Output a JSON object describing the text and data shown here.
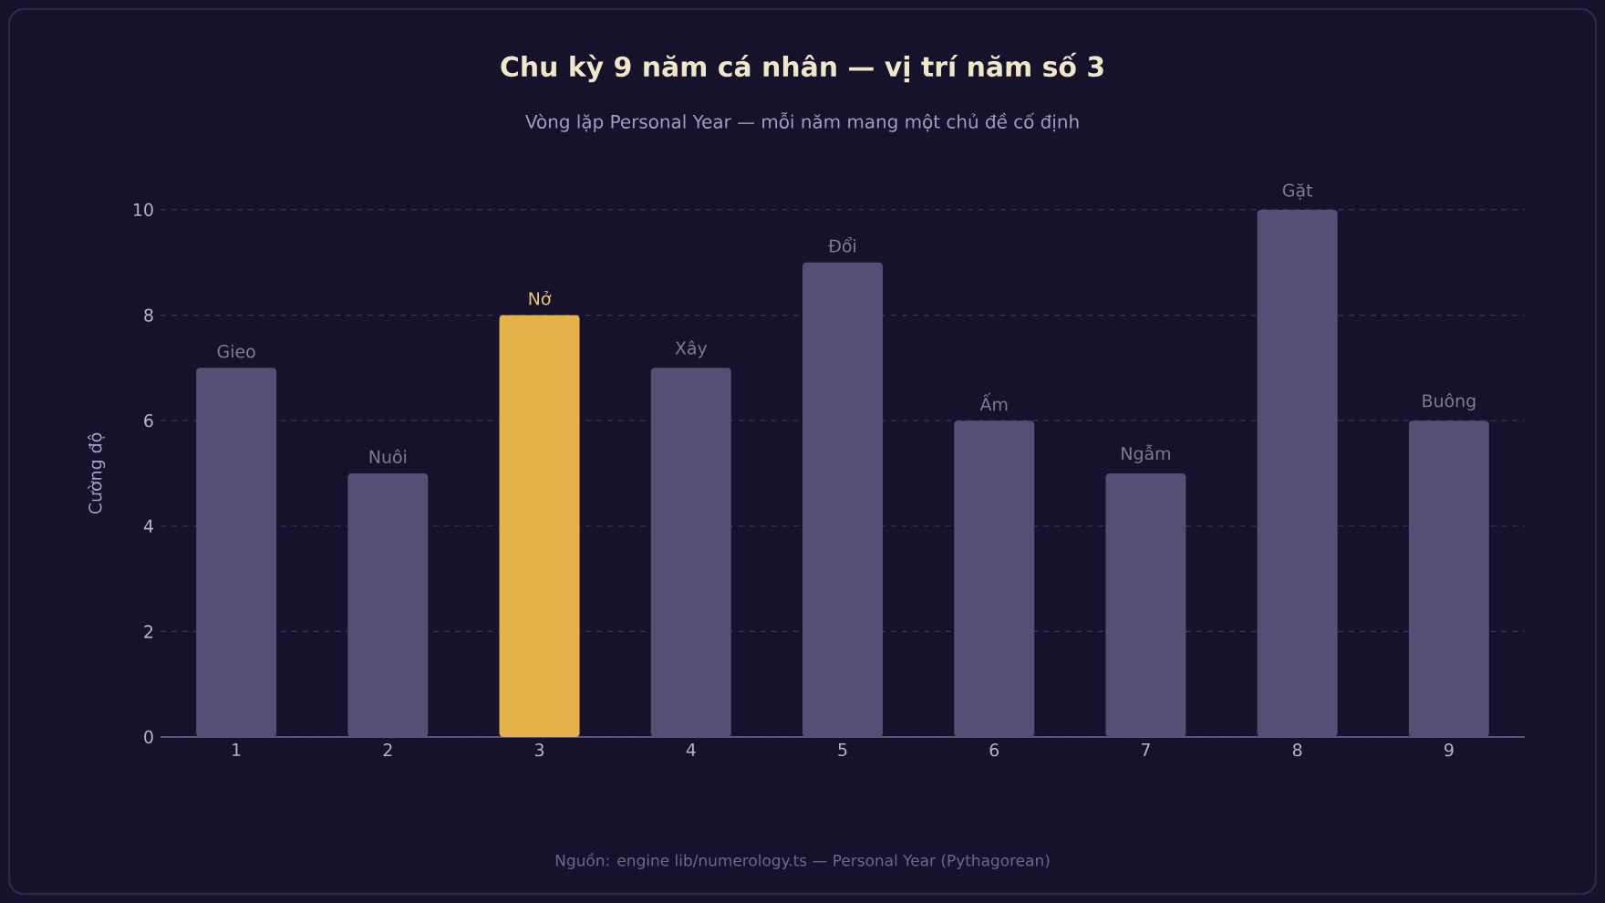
{
  "chart_data": {
    "type": "bar",
    "title": "Chu kỳ 9 năm cá nhân — vị trí năm số 3",
    "subtitle": "Vòng lặp Personal Year — mỗi năm mang một chủ đề cố định",
    "ylabel": "Cường độ",
    "categories": [
      "1",
      "2",
      "3",
      "4",
      "5",
      "6",
      "7",
      "8",
      "9"
    ],
    "values": [
      7,
      5,
      8,
      7,
      9,
      6,
      5,
      10,
      6
    ],
    "colors": [
      "#564e75",
      "#564e75",
      "#e5b24a",
      "#564e75",
      "#564e75",
      "#564e75",
      "#564e75",
      "#564e75",
      "#564e75"
    ],
    "value_labels": [
      "Gieo",
      "Nuôi",
      "Nở",
      "Xây",
      "Đổi",
      "Ấm",
      "Ngẫm",
      "Gặt",
      "Buông"
    ],
    "ylim": [
      0,
      10
    ],
    "yticks": [
      0,
      2,
      4,
      6,
      8,
      10
    ],
    "grid": "y",
    "annotations": [
      "Nguồn: engine lib/numerology.ts — Personal Year (Pythagorean)"
    ]
  }
}
